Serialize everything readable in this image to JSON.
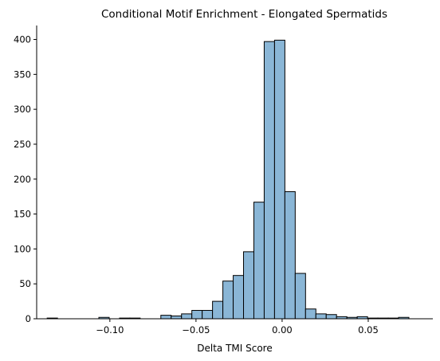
{
  "chart_data": {
    "type": "bar",
    "title": "Conditional Motif Enrichment - Elongated Spermatids",
    "xlabel": "Delta TMI Score",
    "ylabel": "",
    "xlim": [
      -0.1425,
      0.0875
    ],
    "ylim": [
      0,
      420
    ],
    "xticks": [
      -0.1,
      -0.05,
      0.0,
      0.05
    ],
    "xtick_labels": [
      "−0.10",
      "−0.05",
      "0.00",
      "0.05"
    ],
    "yticks": [
      0,
      50,
      100,
      150,
      200,
      250,
      300,
      350,
      400
    ],
    "ytick_labels": [
      "0",
      "50",
      "100",
      "150",
      "200",
      "250",
      "300",
      "350",
      "400"
    ],
    "grid": false,
    "bar_color": "#8ab6d6",
    "edge_color": "#000000",
    "bins": [
      {
        "x0": -0.1364,
        "x1": -0.1304,
        "count": 1
      },
      {
        "x0": -0.1304,
        "x1": -0.1244,
        "count": 0
      },
      {
        "x0": -0.1244,
        "x1": -0.1184,
        "count": 0
      },
      {
        "x0": -0.1184,
        "x1": -0.1124,
        "count": 0
      },
      {
        "x0": -0.1124,
        "x1": -0.1064,
        "count": 0
      },
      {
        "x0": -0.1064,
        "x1": -0.1004,
        "count": 2
      },
      {
        "x0": -0.1004,
        "x1": -0.0944,
        "count": 0
      },
      {
        "x0": -0.0944,
        "x1": -0.0884,
        "count": 1
      },
      {
        "x0": -0.0884,
        "x1": -0.0824,
        "count": 1
      },
      {
        "x0": -0.0824,
        "x1": -0.0764,
        "count": 0
      },
      {
        "x0": -0.0764,
        "x1": -0.0704,
        "count": 0
      },
      {
        "x0": -0.0704,
        "x1": -0.0644,
        "count": 5
      },
      {
        "x0": -0.0644,
        "x1": -0.0584,
        "count": 4
      },
      {
        "x0": -0.0584,
        "x1": -0.0524,
        "count": 7
      },
      {
        "x0": -0.0524,
        "x1": -0.0464,
        "count": 12
      },
      {
        "x0": -0.0464,
        "x1": -0.0404,
        "count": 12
      },
      {
        "x0": -0.0404,
        "x1": -0.0344,
        "count": 25
      },
      {
        "x0": -0.0344,
        "x1": -0.0284,
        "count": 54
      },
      {
        "x0": -0.0284,
        "x1": -0.0224,
        "count": 62
      },
      {
        "x0": -0.0224,
        "x1": -0.0164,
        "count": 96
      },
      {
        "x0": -0.0164,
        "x1": -0.0104,
        "count": 167
      },
      {
        "x0": -0.0104,
        "x1": -0.0044,
        "count": 397
      },
      {
        "x0": -0.0044,
        "x1": 0.0016,
        "count": 399
      },
      {
        "x0": 0.0016,
        "x1": 0.0076,
        "count": 182
      },
      {
        "x0": 0.0076,
        "x1": 0.0136,
        "count": 65
      },
      {
        "x0": 0.0136,
        "x1": 0.0196,
        "count": 14
      },
      {
        "x0": 0.0196,
        "x1": 0.0256,
        "count": 7
      },
      {
        "x0": 0.0256,
        "x1": 0.0316,
        "count": 6
      },
      {
        "x0": 0.0316,
        "x1": 0.0376,
        "count": 3
      },
      {
        "x0": 0.0376,
        "x1": 0.0436,
        "count": 2
      },
      {
        "x0": 0.0436,
        "x1": 0.0496,
        "count": 3
      },
      {
        "x0": 0.0496,
        "x1": 0.0556,
        "count": 1
      },
      {
        "x0": 0.0556,
        "x1": 0.0616,
        "count": 1
      },
      {
        "x0": 0.0616,
        "x1": 0.0676,
        "count": 1
      },
      {
        "x0": 0.0676,
        "x1": 0.0736,
        "count": 2
      }
    ]
  }
}
